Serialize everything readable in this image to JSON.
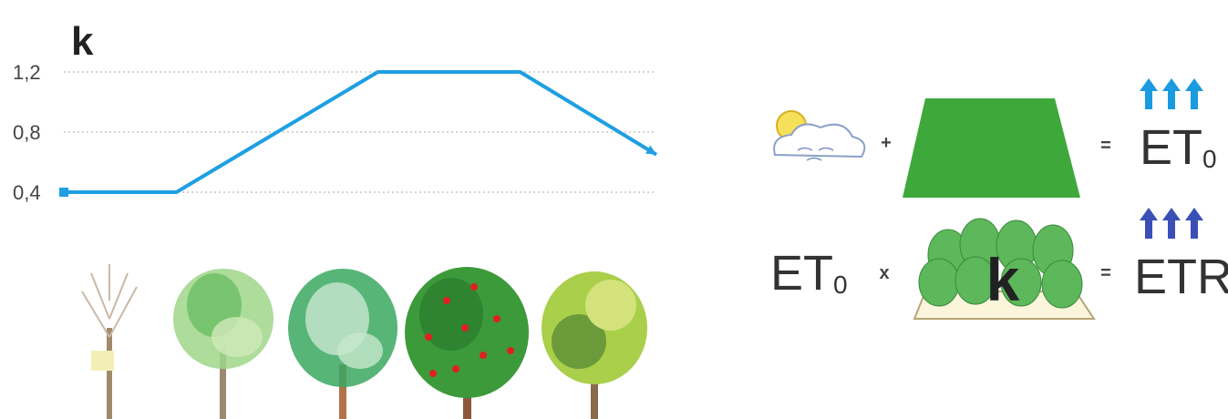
{
  "chart_data": {
    "type": "line",
    "title": "k",
    "x": [
      0,
      0.19,
      0.53,
      0.77,
      1
    ],
    "xlim": [
      0,
      1
    ],
    "series": [
      {
        "color": "#1e9fe3",
        "values": [
          0.4,
          0.4,
          1.2,
          1.2,
          0.65
        ]
      }
    ],
    "ylim": [
      0.3,
      1.3
    ],
    "yticks": [
      {
        "value": 0.4,
        "label": "0,4"
      },
      {
        "value": 0.8,
        "label": "0,8"
      },
      {
        "value": 1.2,
        "label": "1,2"
      }
    ],
    "grid": true
  },
  "equations": [
    {
      "plus": "+",
      "equals": "=",
      "result": {
        "main": "ET",
        "sub": "0"
      }
    },
    {
      "left": {
        "main": "ET",
        "sub": "0"
      },
      "times": "x",
      "k": "k",
      "equals": "=",
      "result": "ETR"
    }
  ]
}
